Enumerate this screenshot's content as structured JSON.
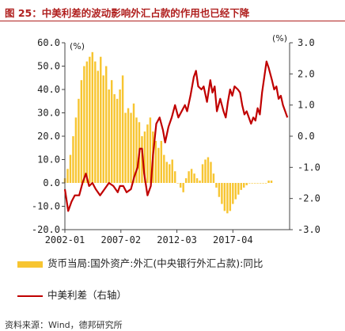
{
  "figure": {
    "title": "图 25：中美利差的波动影响外汇占款的作用也已经下降",
    "source": "资料来源：Wind，德邦研究所"
  },
  "colors": {
    "title": "#b0201f",
    "bars": "#f7c531",
    "line": "#c00000"
  },
  "chart_data": {
    "type": "bar+line",
    "x_ticks": [
      "2002-01",
      "2007-02",
      "2012-03",
      "2017-04"
    ],
    "left_axis": {
      "unit": "(%)",
      "ylim": [
        -20,
        60
      ],
      "ticks": [
        "60.0",
        "50.0",
        "40.0",
        "30.0",
        "20.0",
        "10.0",
        "0.0",
        "-10.0",
        "-20.0"
      ]
    },
    "right_axis": {
      "unit": "(%)",
      "ylim": [
        -3,
        3
      ],
      "ticks": [
        "3.0",
        "2.0",
        "1.0",
        "0.0",
        "-1.0",
        "-2.0",
        "-3.0"
      ]
    },
    "grid": false,
    "legend_position": "bottom",
    "series": [
      {
        "name": "货币当局:国外资产:外汇(中央银行外汇占款):同比",
        "kind": "bar",
        "axis": "left",
        "x_start": 2002.0,
        "x_step": 0.25,
        "values": [
          2,
          6,
          12,
          20,
          28,
          36,
          44,
          50,
          52,
          54,
          56,
          52,
          48,
          54,
          46,
          50,
          40,
          44,
          38,
          36,
          40,
          46,
          30,
          32,
          30,
          34,
          28,
          26,
          20,
          22,
          25,
          28,
          22,
          18,
          15,
          18,
          12,
          9,
          8,
          10,
          5,
          0,
          -2,
          -4,
          2,
          5,
          6,
          4,
          2,
          1,
          8,
          10,
          11,
          9,
          4,
          -2,
          -6,
          -9,
          -12,
          -13,
          -12,
          -9,
          -7,
          -5,
          -3,
          -2,
          -1,
          0,
          0,
          0,
          0,
          0,
          0,
          0,
          1,
          1
        ]
      },
      {
        "name": "中美利差（右轴）",
        "kind": "line",
        "axis": "right",
        "points": [
          [
            2002.0,
            -1.7
          ],
          [
            2002.3,
            -2.4
          ],
          [
            2002.6,
            -2.1
          ],
          [
            2002.9,
            -1.9
          ],
          [
            2003.3,
            -1.9
          ],
          [
            2003.6,
            -1.5
          ],
          [
            2003.9,
            -1.2
          ],
          [
            2004.2,
            -1.6
          ],
          [
            2004.5,
            -1.5
          ],
          [
            2004.8,
            -1.7
          ],
          [
            2005.2,
            -1.9
          ],
          [
            2005.6,
            -1.7
          ],
          [
            2006.0,
            -1.5
          ],
          [
            2006.4,
            -1.6
          ],
          [
            2006.8,
            -1.8
          ],
          [
            2007.0,
            -1.6
          ],
          [
            2007.3,
            -1.6
          ],
          [
            2007.6,
            -1.8
          ],
          [
            2008.0,
            -1.7
          ],
          [
            2008.3,
            -1.3
          ],
          [
            2008.6,
            -1.0
          ],
          [
            2008.8,
            -0.4
          ],
          [
            2009.0,
            -0.4
          ],
          [
            2009.2,
            -1.2
          ],
          [
            2009.5,
            -1.9
          ],
          [
            2009.8,
            -1.6
          ],
          [
            2010.0,
            -0.6
          ],
          [
            2010.3,
            0.4
          ],
          [
            2010.6,
            0.6
          ],
          [
            2010.9,
            0.2
          ],
          [
            2011.1,
            -0.2
          ],
          [
            2011.4,
            0.3
          ],
          [
            2011.7,
            0.6
          ],
          [
            2012.0,
            1.0
          ],
          [
            2012.3,
            0.6
          ],
          [
            2012.6,
            0.8
          ],
          [
            2012.9,
            1.0
          ],
          [
            2013.1,
            0.8
          ],
          [
            2013.4,
            1.3
          ],
          [
            2013.7,
            1.9
          ],
          [
            2013.9,
            2.1
          ],
          [
            2014.1,
            1.6
          ],
          [
            2014.4,
            1.5
          ],
          [
            2014.6,
            1.6
          ],
          [
            2014.9,
            1.1
          ],
          [
            2015.2,
            1.8
          ],
          [
            2015.4,
            1.4
          ],
          [
            2015.6,
            1.6
          ],
          [
            2015.8,
            0.8
          ],
          [
            2016.1,
            1.2
          ],
          [
            2016.4,
            0.8
          ],
          [
            2016.6,
            0.6
          ],
          [
            2016.8,
            1.1
          ],
          [
            2017.0,
            1.5
          ],
          [
            2017.2,
            1.3
          ],
          [
            2017.4,
            1.6
          ],
          [
            2017.7,
            1.5
          ],
          [
            2017.9,
            1.4
          ],
          [
            2018.1,
            1.0
          ],
          [
            2018.3,
            0.7
          ],
          [
            2018.5,
            0.8
          ],
          [
            2018.7,
            0.6
          ],
          [
            2018.9,
            0.4
          ],
          [
            2019.1,
            0.6
          ],
          [
            2019.3,
            0.5
          ],
          [
            2019.5,
            0.9
          ],
          [
            2019.7,
            0.7
          ],
          [
            2019.9,
            1.4
          ],
          [
            2020.1,
            1.9
          ],
          [
            2020.3,
            2.4
          ],
          [
            2020.5,
            2.2
          ],
          [
            2020.8,
            1.8
          ],
          [
            2021.0,
            1.5
          ],
          [
            2021.2,
            1.6
          ],
          [
            2021.4,
            1.2
          ],
          [
            2021.6,
            1.3
          ],
          [
            2021.8,
            1.0
          ],
          [
            2022.0,
            0.8
          ],
          [
            2022.2,
            0.6
          ]
        ]
      }
    ]
  }
}
